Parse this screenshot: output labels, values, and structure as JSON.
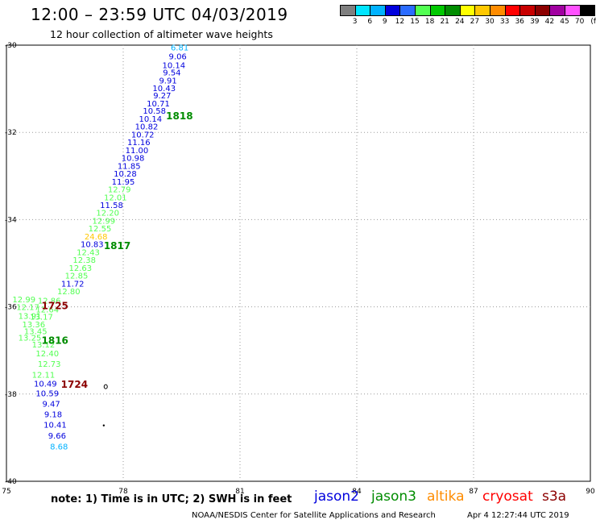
{
  "header": {
    "title": "12:00 – 23:59 UTC 04/03/2019",
    "subtitle": "12 hour collection of altimeter wave heights"
  },
  "colorbar": {
    "unit": "(ft)",
    "bins": [
      {
        "label": "",
        "color": "#7f7f7f"
      },
      {
        "label": "3",
        "color": "#00e5ff"
      },
      {
        "label": "6",
        "color": "#00b2ff"
      },
      {
        "label": "9",
        "color": "#0000dd"
      },
      {
        "label": "12",
        "color": "#2a6bff"
      },
      {
        "label": "15",
        "color": "#52ff52"
      },
      {
        "label": "18",
        "color": "#00c800"
      },
      {
        "label": "21",
        "color": "#008c00"
      },
      {
        "label": "24",
        "color": "#ffff00"
      },
      {
        "label": "27",
        "color": "#ffc800"
      },
      {
        "label": "30",
        "color": "#ff8c00"
      },
      {
        "label": "33",
        "color": "#ff0000"
      },
      {
        "label": "36",
        "color": "#c80000"
      },
      {
        "label": "39",
        "color": "#8c0000"
      },
      {
        "label": "42",
        "color": "#a000a0"
      },
      {
        "label": "45",
        "color": "#ff50ff"
      },
      {
        "label": "70",
        "color": "#000000"
      }
    ]
  },
  "map": {
    "lon_ticks": [
      "75",
      "78",
      "81",
      "84",
      "87",
      "90"
    ],
    "lat_ticks": [
      "-30",
      "-32",
      "-34",
      "-36",
      "-38",
      "-40"
    ],
    "lon_range": [
      75,
      90
    ],
    "lat_range": [
      -30,
      -40
    ],
    "land_outline_color": "#000000",
    "grid_color": "#9a9a9a"
  },
  "chart_data": {
    "type": "scatter",
    "xlabel": "",
    "ylabel": "",
    "xlim": [
      75,
      90
    ],
    "ylim": [
      -40,
      -30
    ],
    "grid": true,
    "observations": [
      {
        "lon": 79.45,
        "lat": -30.05,
        "value": "6.81",
        "satellite": "jason2",
        "color": "#00b2ff"
      },
      {
        "lon": 79.4,
        "lat": -30.25,
        "value": "9.06",
        "satellite": "jason2",
        "color": "#0000dd"
      },
      {
        "lon": 79.3,
        "lat": -30.45,
        "value": "10.14",
        "satellite": "jason2",
        "color": "#0000dd"
      },
      {
        "lon": 79.25,
        "lat": -30.62,
        "value": "9.54",
        "satellite": "jason2",
        "color": "#0000dd"
      },
      {
        "lon": 79.15,
        "lat": -30.8,
        "value": "9.91",
        "satellite": "jason2",
        "color": "#0000dd"
      },
      {
        "lon": 79.05,
        "lat": -30.98,
        "value": "10.43",
        "satellite": "jason2",
        "color": "#0000dd"
      },
      {
        "lon": 79.0,
        "lat": -31.15,
        "value": "9.27",
        "satellite": "jason2",
        "color": "#0000dd"
      },
      {
        "lon": 78.9,
        "lat": -31.33,
        "value": "10.71",
        "satellite": "jason2",
        "color": "#0000dd"
      },
      {
        "lon": 78.8,
        "lat": -31.5,
        "value": "10.58",
        "satellite": "jason2",
        "color": "#0000dd"
      },
      {
        "lon": 78.7,
        "lat": -31.68,
        "value": "10.14",
        "satellite": "jason2",
        "color": "#0000dd"
      },
      {
        "lon": 78.6,
        "lat": -31.86,
        "value": "10.82",
        "satellite": "jason2",
        "color": "#0000dd"
      },
      {
        "lon": 78.5,
        "lat": -32.04,
        "value": "10.72",
        "satellite": "jason2",
        "color": "#0000dd"
      },
      {
        "lon": 78.4,
        "lat": -32.22,
        "value": "11.16",
        "satellite": "jason2",
        "color": "#0000dd"
      },
      {
        "lon": 78.35,
        "lat": -32.4,
        "value": "11.00",
        "satellite": "jason2",
        "color": "#0000dd"
      },
      {
        "lon": 78.25,
        "lat": -32.58,
        "value": "10.98",
        "satellite": "jason2",
        "color": "#0000dd"
      },
      {
        "lon": 78.15,
        "lat": -32.76,
        "value": "11.85",
        "satellite": "jason2",
        "color": "#0000dd"
      },
      {
        "lon": 78.05,
        "lat": -32.94,
        "value": "10.28",
        "satellite": "jason2",
        "color": "#0000dd"
      },
      {
        "lon": 78.0,
        "lat": -33.12,
        "value": "11.95",
        "satellite": "jason2",
        "color": "#0000dd"
      },
      {
        "lon": 77.9,
        "lat": -33.3,
        "value": "12.79",
        "satellite": "jason2",
        "color": "#52ff52"
      },
      {
        "lon": 77.8,
        "lat": -33.48,
        "value": "12.01",
        "satellite": "jason2",
        "color": "#52ff52"
      },
      {
        "lon": 77.7,
        "lat": -33.66,
        "value": "11.58",
        "satellite": "jason2",
        "color": "#0000dd"
      },
      {
        "lon": 77.6,
        "lat": -33.84,
        "value": "12.20",
        "satellite": "jason2",
        "color": "#52ff52"
      },
      {
        "lon": 77.5,
        "lat": -34.02,
        "value": "12.99",
        "satellite": "jason2",
        "color": "#52ff52"
      },
      {
        "lon": 77.4,
        "lat": -34.2,
        "value": "12.55",
        "satellite": "jason2",
        "color": "#52ff52"
      },
      {
        "lon": 77.3,
        "lat": -34.38,
        "value": "24.68",
        "satellite": "jason2",
        "color": "#ffc800"
      },
      {
        "lon": 77.2,
        "lat": -34.56,
        "value": "10.83",
        "satellite": "jason2",
        "color": "#0000dd"
      },
      {
        "lon": 77.1,
        "lat": -34.74,
        "value": "12.43",
        "satellite": "jason2",
        "color": "#52ff52"
      },
      {
        "lon": 77.0,
        "lat": -34.92,
        "value": "12.38",
        "satellite": "jason2",
        "color": "#52ff52"
      },
      {
        "lon": 76.9,
        "lat": -35.1,
        "value": "12.63",
        "satellite": "jason2",
        "color": "#52ff52"
      },
      {
        "lon": 76.8,
        "lat": -35.28,
        "value": "12.85",
        "satellite": "jason2",
        "color": "#52ff52"
      },
      {
        "lon": 76.7,
        "lat": -35.46,
        "value": "11.72",
        "satellite": "jason2",
        "color": "#0000dd"
      },
      {
        "lon": 76.6,
        "lat": -35.64,
        "value": "12.80",
        "satellite": "jason2",
        "color": "#52ff52"
      },
      {
        "lon": 75.45,
        "lat": -35.82,
        "value": "12.99",
        "satellite": "jason2",
        "color": "#52ff52"
      },
      {
        "lon": 76.1,
        "lat": -35.85,
        "value": "12.86",
        "satellite": "jason2",
        "color": "#52ff52"
      },
      {
        "lon": 75.55,
        "lat": -36.0,
        "value": "12.17",
        "satellite": "jason2",
        "color": "#52ff52"
      },
      {
        "lon": 76.05,
        "lat": -36.05,
        "value": "12.64",
        "satellite": "jason2",
        "color": "#52ff52"
      },
      {
        "lon": 75.6,
        "lat": -36.2,
        "value": "13.91",
        "satellite": "jason2",
        "color": "#52ff52"
      },
      {
        "lon": 75.9,
        "lat": -36.22,
        "value": "13.17",
        "satellite": "jason2",
        "color": "#52ff52"
      },
      {
        "lon": 75.7,
        "lat": -36.4,
        "value": "13.36",
        "satellite": "jason2",
        "color": "#52ff52"
      },
      {
        "lon": 75.75,
        "lat": -36.55,
        "value": "13.45",
        "satellite": "jason2",
        "color": "#52ff52"
      },
      {
        "lon": 75.6,
        "lat": -36.7,
        "value": "13.25",
        "satellite": "jason2",
        "color": "#52ff52"
      },
      {
        "lon": 75.95,
        "lat": -36.86,
        "value": "13.12",
        "satellite": "jason2",
        "color": "#52ff52"
      },
      {
        "lon": 76.05,
        "lat": -37.06,
        "value": "12.40",
        "satellite": "jason2",
        "color": "#52ff52"
      },
      {
        "lon": 76.1,
        "lat": -37.3,
        "value": "12.73",
        "satellite": "jason2",
        "color": "#52ff52"
      },
      {
        "lon": 75.95,
        "lat": -37.55,
        "value": "12.11",
        "satellite": "jason2",
        "color": "#52ff52"
      },
      {
        "lon": 76.0,
        "lat": -37.75,
        "value": "10.49",
        "satellite": "jason2",
        "color": "#0000dd"
      },
      {
        "lon": 76.05,
        "lat": -37.98,
        "value": "10.59",
        "satellite": "jason2",
        "color": "#0000dd"
      },
      {
        "lon": 76.15,
        "lat": -38.22,
        "value": "9.47",
        "satellite": "jason2",
        "color": "#0000dd"
      },
      {
        "lon": 76.2,
        "lat": -38.46,
        "value": "9.18",
        "satellite": "jason2",
        "color": "#0000dd"
      },
      {
        "lon": 76.25,
        "lat": -38.7,
        "value": "10.41",
        "satellite": "jason2",
        "color": "#0000dd"
      },
      {
        "lon": 76.3,
        "lat": -38.95,
        "value": "9.66",
        "satellite": "jason2",
        "color": "#0000dd"
      },
      {
        "lon": 76.35,
        "lat": -39.2,
        "value": "8.68",
        "satellite": "jason2",
        "color": "#00b2ff"
      }
    ],
    "pass_labels": [
      {
        "lon": 79.1,
        "lat": -31.63,
        "text": "1818",
        "color": "#008c00"
      },
      {
        "lon": 77.5,
        "lat": -34.6,
        "text": "1817",
        "color": "#008c00"
      },
      {
        "lon": 75.9,
        "lat": -35.98,
        "text": "1725",
        "color": "#8c0000"
      },
      {
        "lon": 75.9,
        "lat": -36.77,
        "text": "1816",
        "color": "#008c00"
      },
      {
        "lon": 76.4,
        "lat": -37.78,
        "text": "1724",
        "color": "#8c0000"
      }
    ]
  },
  "footer": {
    "note": "note:  1) Time is in UTC;  2) SWH is in feet",
    "legend": [
      {
        "label": "jason2",
        "color": "#0000dd"
      },
      {
        "label": "jason3",
        "color": "#008c00"
      },
      {
        "label": "altika",
        "color": "#ff8c00"
      },
      {
        "label": "cryosat",
        "color": "#ff0000"
      },
      {
        "label": "s3a",
        "color": "#8c0000"
      }
    ],
    "credit": "NOAA/NESDIS Center for Satellite Applications and Research",
    "timestamp": "Apr  4 12:27:44 UTC 2019"
  }
}
